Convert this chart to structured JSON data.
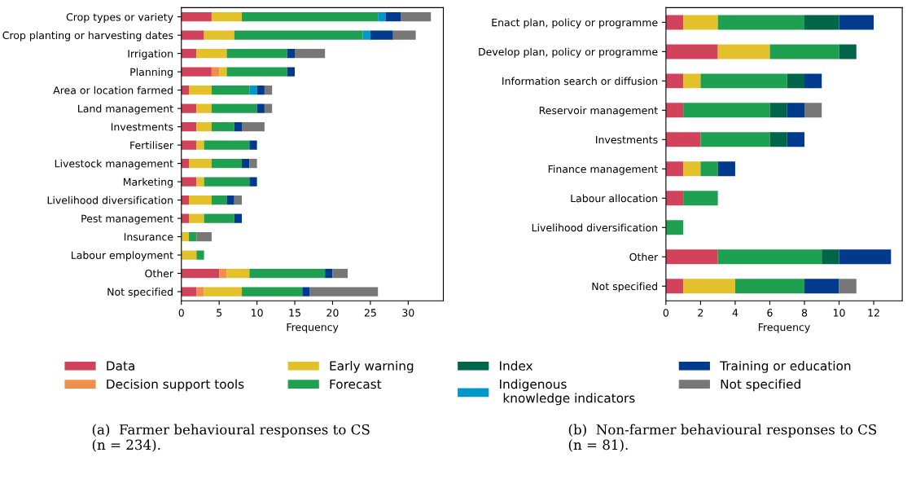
{
  "chart_data": [
    {
      "type": "bar",
      "orientation": "horizontal",
      "stacked": true,
      "xlabel": "Frequency",
      "xlim": [
        0,
        34.65
      ],
      "xticks": [
        0,
        5,
        10,
        15,
        20,
        25,
        30
      ],
      "legend": "bottom",
      "grid": false,
      "categories": [
        "Crop types or variety",
        "Crop planting or harvesting dates",
        "Irrigation",
        "Planning",
        "Area or location farmed",
        "Land management",
        "Investments",
        "Fertiliser",
        "Livestock management",
        "Marketing",
        "Livelihood diversification",
        "Pest management",
        "Insurance",
        "Labour employment",
        "Other",
        "Not specified"
      ],
      "series": [
        {
          "name": "Data",
          "color": "#d1435b",
          "values": [
            4,
            3,
            2,
            4,
            1,
            2,
            2,
            2,
            1,
            2,
            1,
            1,
            0,
            0,
            5,
            2
          ]
        },
        {
          "name": "Decision support tools",
          "color": "#f28e4c",
          "values": [
            0,
            0,
            0,
            1,
            0,
            0,
            0,
            0,
            0,
            0,
            0,
            0,
            0,
            0,
            1,
            1
          ]
        },
        {
          "name": "Early warning",
          "color": "#e3c12a",
          "values": [
            4,
            4,
            4,
            1,
            3,
            2,
            2,
            1,
            3,
            1,
            3,
            2,
            1,
            2,
            3,
            5
          ]
        },
        {
          "name": "Forecast",
          "color": "#1fa050",
          "values": [
            18,
            17,
            8,
            8,
            5,
            6,
            3,
            6,
            4,
            6,
            2,
            4,
            1,
            1,
            10,
            8
          ]
        },
        {
          "name": "Indigenous\n knowledge indicators",
          "color": "#0097c9",
          "values": [
            1,
            1,
            0,
            0,
            1,
            0,
            0,
            0,
            0,
            0,
            0,
            0,
            0,
            0,
            0,
            0
          ]
        },
        {
          "name": "Training or education",
          "color": "#003a8c",
          "values": [
            2,
            3,
            1,
            1,
            1,
            1,
            1,
            1,
            1,
            1,
            1,
            1,
            0,
            0,
            1,
            1
          ]
        },
        {
          "name": "Not specified",
          "color": "#777777",
          "values": [
            4,
            3,
            4,
            0,
            1,
            1,
            3,
            0,
            1,
            0,
            1,
            0,
            2,
            0,
            2,
            9
          ]
        }
      ],
      "annotations": [
        "(a)  Farmer behavioural responses to CS\n(n = 234)."
      ]
    },
    {
      "type": "bar",
      "orientation": "horizontal",
      "stacked": true,
      "xlabel": "Frequency",
      "xlim": [
        0,
        13.65
      ],
      "xticks": [
        0,
        2,
        4,
        6,
        8,
        10,
        12
      ],
      "grid": false,
      "categories": [
        "Enact plan, policy or programme",
        "Develop plan, policy or programme",
        "Information search or diffusion",
        "Reservoir management",
        "Investments",
        "Finance management",
        "Labour allocation",
        "Livelihood diversification",
        "Other",
        "Not specified"
      ],
      "series": [
        {
          "name": "Data",
          "color": "#d1435b",
          "values": [
            1,
            3,
            1,
            1,
            2,
            1,
            1,
            0,
            3,
            1
          ]
        },
        {
          "name": "Early warning",
          "color": "#e3c12a",
          "values": [
            2,
            3,
            1,
            0,
            0,
            1,
            0,
            0,
            0,
            3
          ]
        },
        {
          "name": "Forecast",
          "color": "#1fa050",
          "values": [
            5,
            4,
            5,
            5,
            4,
            1,
            2,
            1,
            6,
            4
          ]
        },
        {
          "name": "Index",
          "color": "#00664a",
          "values": [
            2,
            1,
            1,
            1,
            1,
            0,
            0,
            0,
            1,
            0
          ]
        },
        {
          "name": "Training or education",
          "color": "#003a8c",
          "values": [
            2,
            0,
            1,
            1,
            1,
            1,
            0,
            0,
            3,
            2
          ]
        },
        {
          "name": "Not specified",
          "color": "#777777",
          "values": [
            0,
            0,
            0,
            1,
            0,
            0,
            0,
            0,
            0,
            1
          ]
        }
      ],
      "annotations": [
        "(b)  Non-farmer behavioural responses to CS\n(n = 81)."
      ]
    }
  ]
}
